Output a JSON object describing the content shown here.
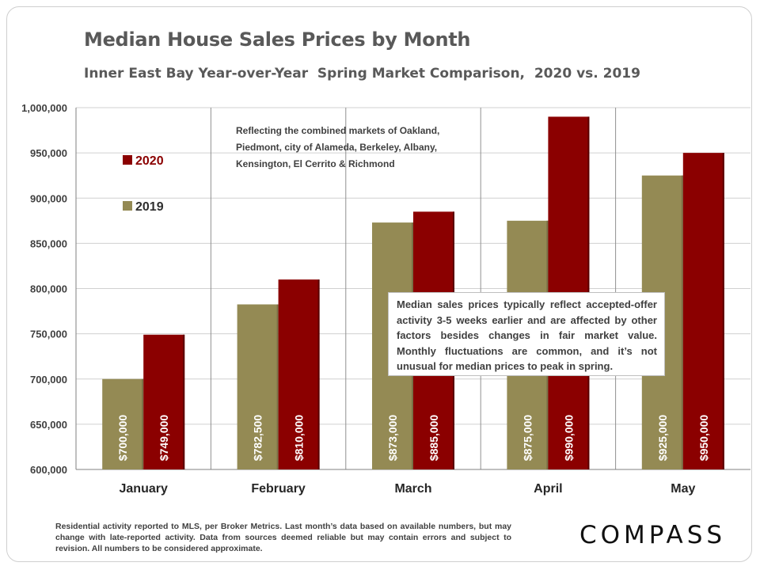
{
  "title": "Median House Sales Prices by Month",
  "subtitle": "Inner East Bay Year-over-Year  Spring Market Comparison,  2020 vs. 2019",
  "chart_data": {
    "type": "bar",
    "categories": [
      "January",
      "February",
      "March",
      "April",
      "May"
    ],
    "series": [
      {
        "name": "2019",
        "color": "#948A54",
        "values": [
          700000,
          782500,
          873000,
          875000,
          925000
        ],
        "labels": [
          "$700,000",
          "$782,500",
          "$873,000",
          "$875,000",
          "$925,000"
        ]
      },
      {
        "name": "2020",
        "color": "#8B0000",
        "values": [
          749000,
          810000,
          885000,
          990000,
          950000
        ],
        "labels": [
          "$749,000",
          "$810,000",
          "$885,000",
          "$990,000",
          "$950,000"
        ]
      }
    ],
    "ylim": [
      600000,
      1000000
    ],
    "yticks": [
      600000,
      650000,
      700000,
      750000,
      800000,
      850000,
      900000,
      950000,
      1000000
    ],
    "ytick_labels": [
      "600,000",
      "650,000",
      "700,000",
      "750,000",
      "800,000",
      "850,000",
      "900,000",
      "950,000",
      "1,000,000"
    ],
    "grid": "horizontal",
    "legend_placement": "top-left",
    "legend_order": [
      "2020",
      "2019"
    ]
  },
  "annotations": {
    "markets": "Reflecting the combined markets of Oakland, Piedmont, city of Alameda, Berkeley, Albany, Kensington, El Cerrito & Richmond",
    "note": "Median sales prices typically reflect accepted-offer activity 3-5 weeks earlier and are affected by other factors besides changes in fair market value. Monthly fluctuations are common, and it’s not unusual for median prices to peak in spring."
  },
  "footnote": "Residential activity reported to MLS, per Broker Metrics. Last month’s data based on available numbers, but may change with late-reported activity. Data from sources deemed reliable but may contain errors and subject to revision. All numbers to be considered approximate.",
  "logo": "COMPASS"
}
